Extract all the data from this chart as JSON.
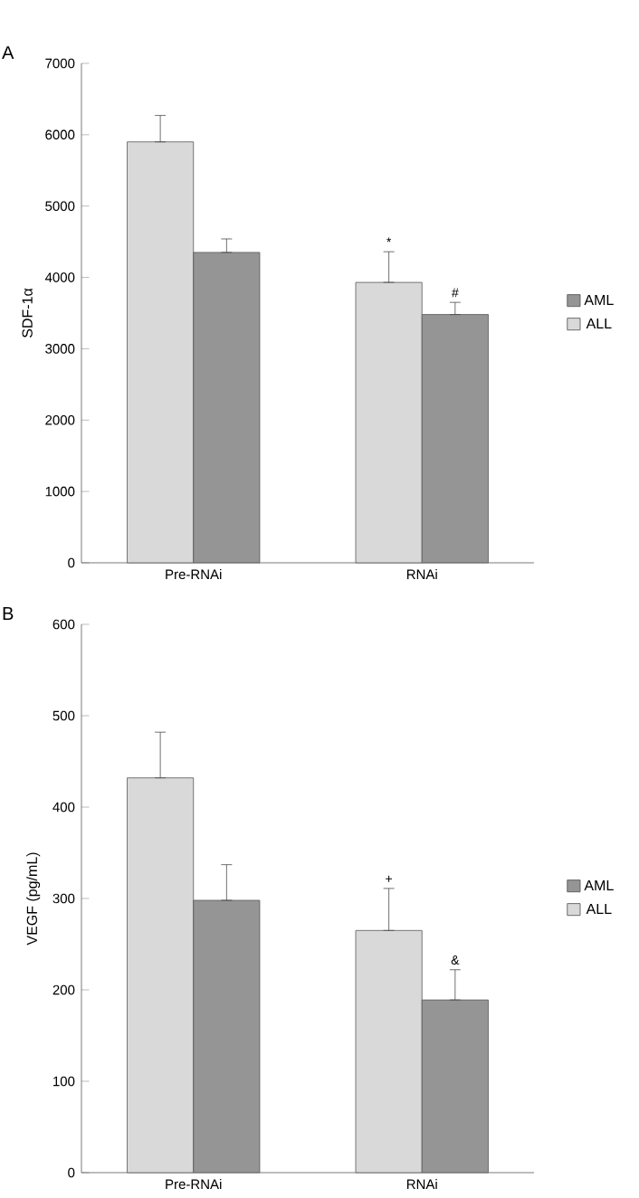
{
  "chart_data": [
    {
      "type": "bar",
      "title": "A",
      "ylabel": "SDF-1α",
      "categories": [
        "Pre-RNAi",
        "RNAi"
      ],
      "series": [
        {
          "name": "ALL",
          "color": "#d9d9d9",
          "values": [
            5900,
            3930
          ],
          "errors": [
            [
              5900,
              6270
            ],
            [
              3930,
              4360
            ]
          ]
        },
        {
          "name": "AML",
          "color": "#959595",
          "values": [
            4350,
            3480
          ],
          "errors": [
            [
              4350,
              4540
            ],
            [
              3480,
              3650
            ]
          ]
        }
      ],
      "ylim": [
        0,
        7000
      ],
      "yticks": [
        0,
        1000,
        2000,
        3000,
        4000,
        5000,
        6000,
        7000
      ],
      "legend": "right",
      "grid": false,
      "annotations": [
        "*",
        "#"
      ]
    },
    {
      "type": "bar",
      "title": "B",
      "ylabel": "VEGF (pg/mL)",
      "categories": [
        "Pre-RNAi",
        "RNAi"
      ],
      "series": [
        {
          "name": "ALL",
          "color": "#d9d9d9",
          "values": [
            432,
            265
          ],
          "errors": [
            [
              432,
              482
            ],
            [
              265,
              311
            ]
          ]
        },
        {
          "name": "AML",
          "color": "#959595",
          "values": [
            298,
            189
          ],
          "errors": [
            [
              298,
              337
            ],
            [
              189,
              222
            ]
          ]
        }
      ],
      "ylim": [
        0,
        600
      ],
      "yticks": [
        0,
        100,
        200,
        300,
        400,
        500,
        600
      ],
      "legend": "right",
      "grid": false,
      "annotations": [
        "+",
        "&"
      ]
    }
  ]
}
